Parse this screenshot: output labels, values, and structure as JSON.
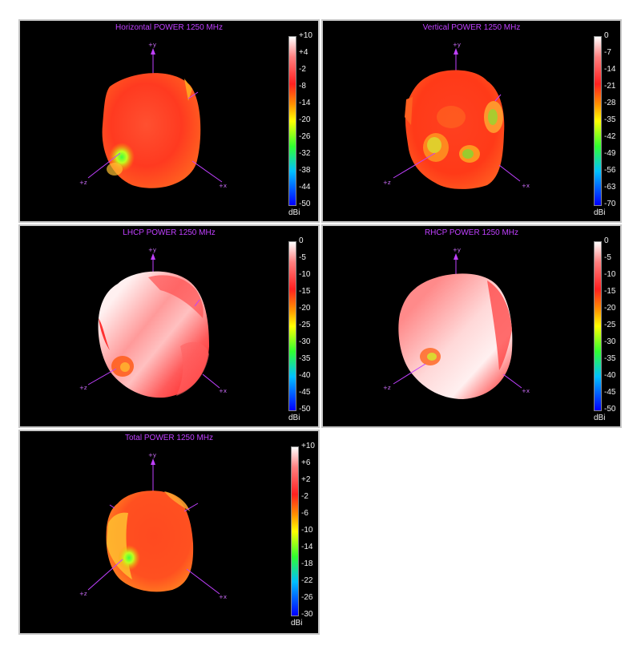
{
  "unit_label": "dBi",
  "axis_labels": {
    "x": "+x",
    "y": "+y",
    "z": "+z"
  },
  "panels": [
    {
      "title": "Horizontal POWER 1250  MHz",
      "scale_ticks": [
        "+10",
        "+4",
        "-2",
        "-8",
        "-14",
        "-20",
        "-26",
        "-32",
        "-38",
        "-44",
        "-50"
      ]
    },
    {
      "title": "Vertical POWER 1250  MHz",
      "scale_ticks": [
        "0",
        "-7",
        "-14",
        "-21",
        "-28",
        "-35",
        "-42",
        "-49",
        "-56",
        "-63",
        "-70"
      ]
    },
    {
      "title": "LHCP POWER 1250  MHz",
      "scale_ticks": [
        "0",
        "-5",
        "-10",
        "-15",
        "-20",
        "-25",
        "-30",
        "-35",
        "-40",
        "-45",
        "-50"
      ]
    },
    {
      "title": "RHCP POWER 1250  MHz",
      "scale_ticks": [
        "0",
        "-5",
        "-10",
        "-15",
        "-20",
        "-25",
        "-30",
        "-35",
        "-40",
        "-45",
        "-50"
      ]
    },
    {
      "title": "Total POWER 1250  MHz",
      "scale_ticks": [
        "+10",
        "+6",
        "+2",
        "-2",
        "-6",
        "-10",
        "-14",
        "-18",
        "-22",
        "-26",
        "-30"
      ]
    }
  ],
  "colorscale": [
    "#ffffff",
    "#ff2020",
    "#ffa000",
    "#ffff00",
    "#40ff40",
    "#00b0ff",
    "#0000ff"
  ]
}
